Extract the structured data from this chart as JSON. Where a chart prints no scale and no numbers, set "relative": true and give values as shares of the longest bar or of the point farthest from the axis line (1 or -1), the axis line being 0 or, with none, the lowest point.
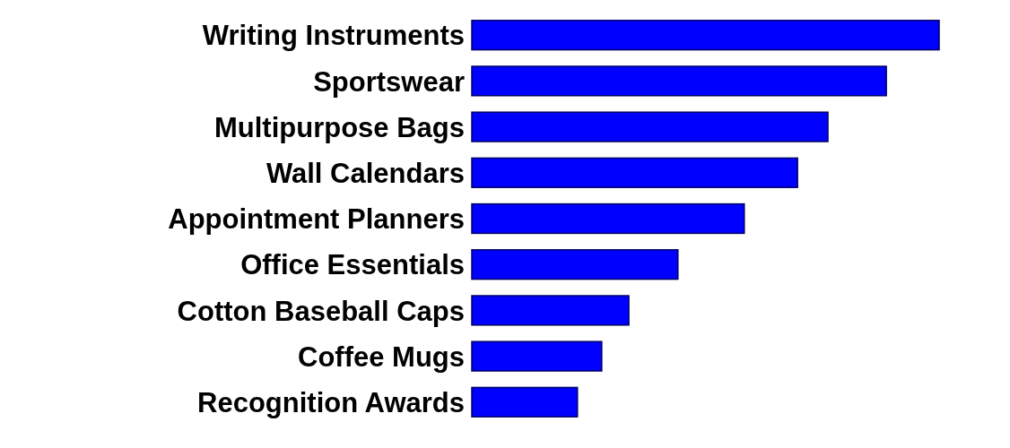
{
  "chart_data": {
    "type": "bar",
    "orientation": "horizontal",
    "relative": true,
    "categories": [
      "Writing Instruments",
      "Sportswear",
      "Multipurpose Bags",
      "Wall Calendars",
      "Appointment Planners",
      "Office Essentials",
      "Cotton Baseball Caps",
      "Coffee Mugs",
      "Recognition Awards"
    ],
    "values": [
      1,
      0.887,
      0.762,
      0.697,
      0.583,
      0.441,
      0.336,
      0.278,
      0.226
    ],
    "color": "#0000ff"
  }
}
